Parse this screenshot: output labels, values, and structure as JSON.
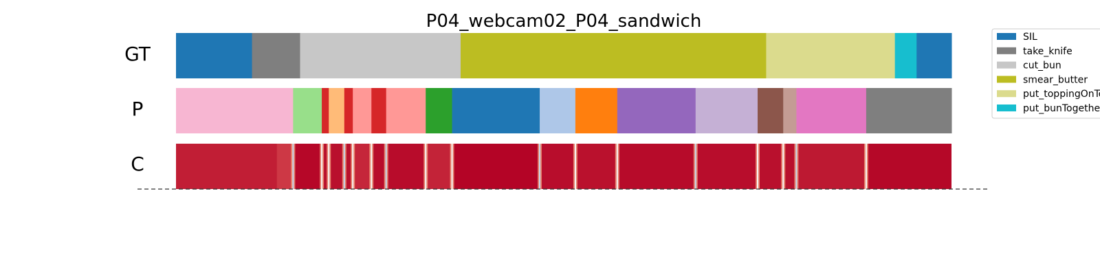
{
  "chart_data": {
    "type": "segmentation",
    "title": "P04_webcam02_P04_sandwich",
    "total_frames": 1000,
    "rows": [
      {
        "label": "GT",
        "segments": [
          {
            "start": 0,
            "end": 98,
            "label": "SIL"
          },
          {
            "start": 98,
            "end": 160,
            "label": "take_knife"
          },
          {
            "start": 160,
            "end": 367,
            "label": "cut_bun"
          },
          {
            "start": 367,
            "end": 761,
            "label": "smear_butter"
          },
          {
            "start": 761,
            "end": 927,
            "label": "put_toppingOnTop"
          },
          {
            "start": 927,
            "end": 955,
            "label": "put_bunTogether"
          },
          {
            "start": 955,
            "end": 1000,
            "label": "SIL"
          }
        ]
      },
      {
        "label": "P",
        "segments": [
          {
            "start": 0,
            "end": 151,
            "color": "#f7b6d2"
          },
          {
            "start": 151,
            "end": 188,
            "color": "#98df8a"
          },
          {
            "start": 188,
            "end": 197,
            "color": "#d62728"
          },
          {
            "start": 197,
            "end": 217,
            "color": "#ffbb78"
          },
          {
            "start": 217,
            "end": 228,
            "color": "#d62728"
          },
          {
            "start": 228,
            "end": 252,
            "color": "#ff9896"
          },
          {
            "start": 252,
            "end": 271,
            "color": "#d62728"
          },
          {
            "start": 271,
            "end": 322,
            "color": "#ff9896"
          },
          {
            "start": 322,
            "end": 356,
            "color": "#2ca02c"
          },
          {
            "start": 356,
            "end": 469,
            "color": "#1f77b4"
          },
          {
            "start": 469,
            "end": 515,
            "color": "#aec7e8"
          },
          {
            "start": 515,
            "end": 569,
            "color": "#ff7f0e"
          },
          {
            "start": 569,
            "end": 670,
            "color": "#9467bd"
          },
          {
            "start": 670,
            "end": 750,
            "color": "#c5b0d5"
          },
          {
            "start": 750,
            "end": 783,
            "color": "#8c564b"
          },
          {
            "start": 783,
            "end": 800,
            "color": "#c49c94"
          },
          {
            "start": 800,
            "end": 890,
            "color": "#e377c2"
          },
          {
            "start": 890,
            "end": 1000,
            "color": "#7f7f7f"
          }
        ]
      },
      {
        "label": "C",
        "base_color": "#b40426",
        "confidence": [
          {
            "start": 0,
            "end": 130,
            "value": 0.85
          },
          {
            "start": 130,
            "end": 151,
            "value": 0.7
          },
          {
            "start": 151,
            "end": 188,
            "value": 0.98
          },
          {
            "start": 188,
            "end": 228,
            "value": 0.93
          },
          {
            "start": 228,
            "end": 252,
            "value": 0.8
          },
          {
            "start": 252,
            "end": 322,
            "value": 0.95
          },
          {
            "start": 322,
            "end": 356,
            "value": 0.82
          },
          {
            "start": 356,
            "end": 469,
            "value": 0.99
          },
          {
            "start": 469,
            "end": 515,
            "value": 0.94
          },
          {
            "start": 515,
            "end": 569,
            "value": 0.92
          },
          {
            "start": 569,
            "end": 670,
            "value": 0.96
          },
          {
            "start": 670,
            "end": 750,
            "value": 0.94
          },
          {
            "start": 750,
            "end": 800,
            "value": 0.93
          },
          {
            "start": 800,
            "end": 890,
            "value": 0.88
          },
          {
            "start": 890,
            "end": 1000,
            "value": 0.97
          }
        ],
        "transitions": [
          151,
          188,
          197,
          217,
          228,
          252,
          271,
          322,
          356,
          469,
          515,
          569,
          670,
          750,
          783,
          800,
          890
        ]
      }
    ],
    "legend": {
      "placement": "right",
      "entries": [
        {
          "label": "SIL",
          "color": "#1f77b4"
        },
        {
          "label": "take_knife",
          "color": "#7f7f7f"
        },
        {
          "label": "cut_bun",
          "color": "#c7c7c7"
        },
        {
          "label": "smear_butter",
          "color": "#bcbd22"
        },
        {
          "label": "put_toppingOnTop",
          "color": "#dbdb8d"
        },
        {
          "label": "put_bunTogether",
          "color": "#17becf"
        }
      ]
    }
  }
}
